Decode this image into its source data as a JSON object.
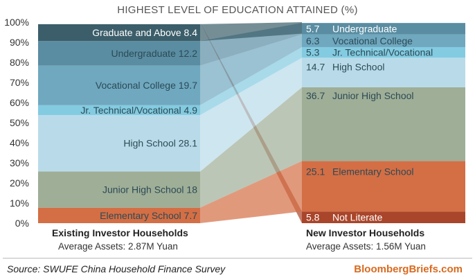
{
  "chart_data": {
    "type": "stacked-bar",
    "title": "HIGHEST LEVEL OF EDUCATION ATTAINED (%)",
    "ylim": [
      0,
      100
    ],
    "yticks": [
      "0%",
      "10%",
      "20%",
      "30%",
      "40%",
      "50%",
      "60%",
      "70%",
      "80%",
      "90%",
      "100%"
    ],
    "categories": [
      {
        "name": "Existing Investor Households",
        "subtitle": "Average Assets: 2.87M Yuan"
      },
      {
        "name": "New Investor Households",
        "subtitle": "Average Assets: 1.56M Yuan"
      }
    ],
    "series": [
      {
        "name": "Not Literate",
        "color": "#a9452a",
        "values": [
          null,
          5.8
        ],
        "labels": [
          "",
          "Not Literate"
        ]
      },
      {
        "name": "Elementary School",
        "color": "#d46e45",
        "values": [
          7.7,
          25.1
        ],
        "labels": [
          "Elementary School",
          "Elementary School"
        ]
      },
      {
        "name": "Junior High School",
        "color": "#9fae97",
        "values": [
          18.0,
          36.7
        ],
        "labels": [
          "Junior High School",
          "Junior High School"
        ]
      },
      {
        "name": "High School",
        "color": "#b9dbe9",
        "values": [
          28.1,
          14.7
        ],
        "labels": [
          "High School",
          "High School"
        ]
      },
      {
        "name": "Jr. Technical/Vocational",
        "color": "#83cbe1",
        "values": [
          4.9,
          5.3
        ],
        "labels": [
          "Jr. Technical/Vocational",
          "Jr. Technical/Vocational"
        ]
      },
      {
        "name": "Vocational College",
        "color": "#6fa8bf",
        "values": [
          19.7,
          6.3
        ],
        "labels": [
          "Vocational College",
          "Vocational College"
        ]
      },
      {
        "name": "Undergraduate",
        "color": "#5a8da2",
        "values": [
          12.2,
          5.7
        ],
        "labels": [
          "Undergraduate",
          "Undergraduate"
        ]
      },
      {
        "name": "Graduate and Above",
        "color": "#3b5e6a",
        "values": [
          8.4,
          null
        ],
        "labels": [
          "Graduate and Above",
          ""
        ]
      }
    ]
  },
  "footer": {
    "source": "Source: SWUFE China Household Finance Survey",
    "brand": "BloombergBriefs.com"
  }
}
